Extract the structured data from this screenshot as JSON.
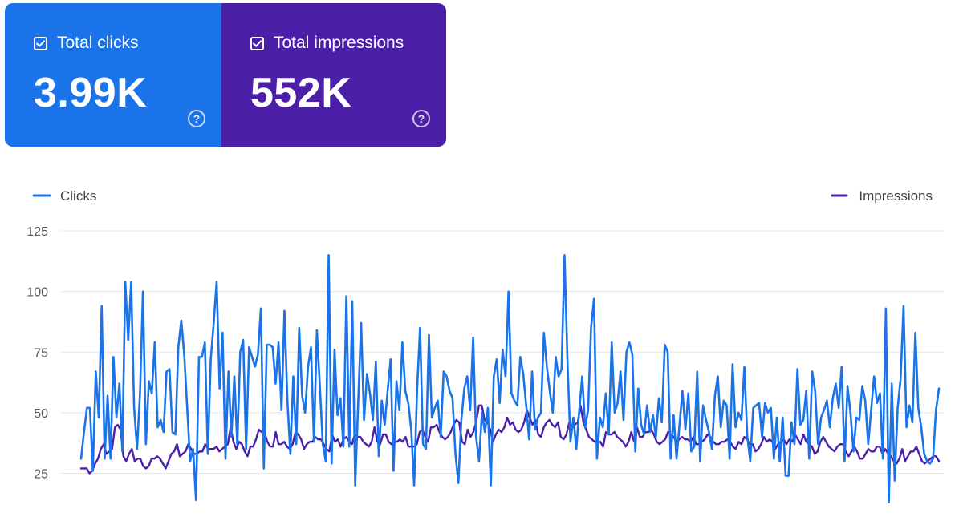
{
  "cards": [
    {
      "label": "Total clicks",
      "value": "3.99K",
      "color": "#1a73e8",
      "checked": true,
      "help_icon": "question-circle-icon"
    },
    {
      "label": "Total impressions",
      "value": "552K",
      "color": "#4b1fa8",
      "checked": true,
      "help_icon": "question-circle-icon"
    }
  ],
  "chart_data": {
    "type": "line",
    "legend_placement": "top, Clicks left and Impressions right",
    "yticks": [
      25,
      50,
      75,
      100,
      125
    ],
    "ylim": [
      10,
      125
    ],
    "grid": true,
    "series": [
      {
        "name": "Clicks",
        "color": "#1a73e8",
        "values": [
          31,
          42,
          52,
          52,
          26,
          67,
          48,
          94,
          31,
          57,
          31,
          73,
          48,
          62,
          34,
          104,
          80,
          104,
          52,
          35,
          58,
          100,
          37,
          63,
          58,
          79,
          44,
          47,
          42,
          67,
          68,
          42,
          41,
          77,
          88,
          74,
          52,
          30,
          35,
          14,
          73,
          73,
          79,
          33,
          72,
          87,
          104,
          60,
          83,
          31,
          67,
          40,
          65,
          37,
          75,
          80,
          35,
          77,
          73,
          69,
          74,
          93,
          27,
          78,
          78,
          77,
          62,
          79,
          51,
          92,
          55,
          33,
          65,
          37,
          85,
          57,
          50,
          69,
          77,
          38,
          84,
          61,
          37,
          30,
          115,
          29,
          76,
          49,
          56,
          36,
          98,
          36,
          96,
          20,
          54,
          87,
          47,
          66,
          58,
          47,
          71,
          32,
          55,
          45,
          59,
          72,
          26,
          63,
          51,
          79,
          59,
          54,
          43,
          20,
          60,
          85,
          37,
          35,
          82,
          48,
          52,
          55,
          40,
          67,
          65,
          59,
          56,
          33,
          21,
          47,
          60,
          65,
          51,
          81,
          40,
          30,
          50,
          42,
          52,
          20,
          65,
          72,
          54,
          76,
          65,
          100,
          58,
          55,
          53,
          73,
          66,
          53,
          39,
          67,
          43,
          48,
          50,
          83,
          69,
          59,
          50,
          73,
          65,
          68,
          115,
          71,
          38,
          48,
          35,
          51,
          65,
          44,
          51,
          85,
          97,
          31,
          48,
          44,
          58,
          41,
          79,
          50,
          54,
          67,
          47,
          75,
          79,
          74,
          34,
          60,
          45,
          41,
          53,
          42,
          49,
          40,
          56,
          46,
          78,
          75,
          31,
          49,
          31,
          45,
          59,
          43,
          58,
          34,
          36,
          67,
          30,
          53,
          47,
          42,
          35,
          57,
          65,
          44,
          55,
          53,
          31,
          70,
          44,
          50,
          47,
          69,
          40,
          30,
          52,
          53,
          54,
          40,
          54,
          50,
          52,
          31,
          48,
          30,
          48,
          24,
          24,
          46,
          37,
          68,
          45,
          47,
          59,
          31,
          67,
          59,
          37,
          48,
          51,
          55,
          44,
          56,
          62,
          52,
          69,
          30,
          61,
          50,
          34,
          48,
          47,
          61,
          55,
          37,
          51,
          65,
          54,
          58,
          31,
          93,
          13,
          62,
          22,
          52,
          64,
          94,
          44,
          53,
          46,
          83,
          52,
          44,
          33,
          30,
          29,
          31,
          51,
          60
        ]
      },
      {
        "name": "Impressions",
        "color": "#4b1fa8",
        "values": [
          27,
          27,
          27,
          25,
          26,
          29,
          31,
          35,
          37,
          33,
          34,
          35,
          44,
          45,
          43,
          32,
          30,
          33,
          35,
          30,
          31,
          31,
          28,
          27,
          28,
          31,
          31,
          32,
          31,
          29,
          27,
          30,
          33,
          34,
          37,
          32,
          33,
          34,
          37,
          35,
          33,
          33,
          34,
          34,
          37,
          35,
          35,
          35,
          36,
          34,
          35,
          36,
          37,
          44,
          38,
          35,
          38,
          37,
          34,
          32,
          36,
          36,
          39,
          43,
          42,
          42,
          38,
          36,
          36,
          42,
          37,
          37,
          38,
          36,
          35,
          37,
          42,
          41,
          39,
          35,
          37,
          38,
          38,
          40,
          39,
          39,
          37,
          35,
          34,
          41,
          38,
          39,
          36,
          39,
          40,
          38,
          37,
          41,
          40,
          40,
          38,
          37,
          36,
          38,
          44,
          38,
          37,
          41,
          41,
          38,
          37,
          38,
          38,
          39,
          38,
          40,
          36,
          36,
          36,
          37,
          42,
          43,
          40,
          38,
          44,
          44,
          45,
          42,
          40,
          39,
          40,
          42,
          45,
          47,
          46,
          38,
          37,
          43,
          40,
          42,
          46,
          53,
          53,
          47,
          46,
          43,
          38,
          41,
          43,
          42,
          44,
          48,
          45,
          46,
          43,
          42,
          43,
          46,
          51,
          48,
          45,
          47,
          41,
          40,
          44,
          46,
          47,
          45,
          44,
          46,
          40,
          39,
          41,
          46,
          44,
          45,
          46,
          53,
          46,
          43,
          40,
          39,
          38,
          38,
          38,
          36,
          42,
          41,
          41,
          42,
          40,
          39,
          38,
          36,
          38,
          42,
          38,
          44,
          40,
          40,
          42,
          42,
          43,
          41,
          38,
          37,
          38,
          39,
          42,
          41,
          40,
          38,
          39,
          40,
          39,
          39,
          38,
          40,
          37,
          37,
          38,
          39,
          41,
          40,
          38,
          37,
          37,
          38,
          38,
          39,
          38,
          36,
          35,
          38,
          37,
          40,
          39,
          37,
          37,
          34,
          35,
          37,
          40,
          38,
          39,
          38,
          35,
          37,
          38,
          39,
          37,
          39,
          38,
          41,
          39,
          37,
          41,
          38,
          37,
          36,
          33,
          34,
          38,
          40,
          38,
          36,
          35,
          34,
          36,
          37,
          37,
          34,
          32,
          34,
          36,
          34,
          31,
          31,
          33,
          35,
          34,
          34,
          36,
          36,
          33,
          35,
          33,
          32,
          30,
          29,
          31,
          35,
          30,
          32,
          34,
          34,
          36,
          33,
          30,
          29,
          30,
          31,
          32,
          32,
          30
        ]
      }
    ]
  }
}
